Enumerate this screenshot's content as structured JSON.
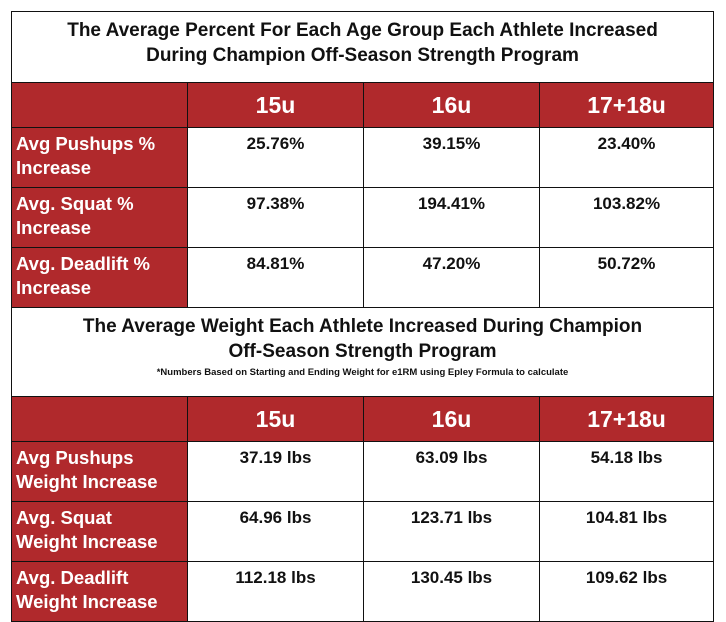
{
  "colors": {
    "header_bg": "#b0292c",
    "header_text": "#ffffff"
  },
  "table1": {
    "title_line1": "The Average Percent For Each Age Group Each Athlete Increased",
    "title_line2": "During Champion Off-Season Strength Program",
    "columns": [
      "",
      "15u",
      "16u",
      "17+18u"
    ],
    "rows": [
      {
        "label_line1": "Avg Pushups %",
        "label_line2": "Increase",
        "values": [
          "25.76%",
          "39.15%",
          "23.40%"
        ]
      },
      {
        "label_line1": "Avg. Squat %",
        "label_line2": "Increase",
        "values": [
          "97.38%",
          "194.41%",
          "103.82%"
        ]
      },
      {
        "label_line1": "Avg. Deadlift %",
        "label_line2": "Increase",
        "values": [
          "84.81%",
          "47.20%",
          "50.72%"
        ]
      }
    ]
  },
  "table2": {
    "title_line1": "The Average Weight Each Athlete Increased During Champion",
    "title_line2": "Off-Season Strength Program",
    "note": "*Numbers Based on Starting and Ending Weight for e1RM using Epley Formula to calculate",
    "columns": [
      "",
      "15u",
      "16u",
      "17+18u"
    ],
    "rows": [
      {
        "label_line1": "Avg Pushups",
        "label_line2": "Weight Increase",
        "values": [
          "37.19 lbs",
          "63.09 lbs",
          "54.18 lbs"
        ]
      },
      {
        "label_line1": "Avg. Squat",
        "label_line2": "Weight Increase",
        "values": [
          "64.96 lbs",
          "123.71 lbs",
          "104.81 lbs"
        ]
      },
      {
        "label_line1": "Avg. Deadlift",
        "label_line2": "Weight Increase",
        "values": [
          "112.18 lbs",
          "130.45 lbs",
          "109.62 lbs"
        ]
      }
    ]
  }
}
